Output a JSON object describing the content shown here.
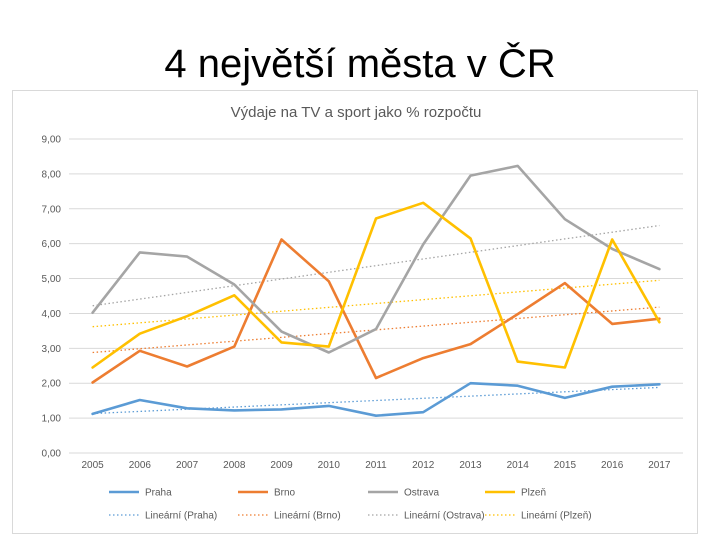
{
  "slide": {
    "title": "4 největší města v ČR"
  },
  "chart_data": {
    "type": "line",
    "title": "Výdaje na TV a sport jako % rozpočtu",
    "xlabel": "",
    "ylabel": "",
    "x": [
      "2005",
      "2006",
      "2007",
      "2008",
      "2009",
      "2010",
      "2011",
      "2012",
      "2013",
      "2014",
      "2015",
      "2016",
      "2017"
    ],
    "ylim": [
      0,
      9
    ],
    "yticks": [
      "0,00",
      "1,00",
      "2,00",
      "3,00",
      "4,00",
      "5,00",
      "6,00",
      "7,00",
      "8,00",
      "9,00"
    ],
    "grid": true,
    "legend": "bottom",
    "series": [
      {
        "name": "Praha",
        "color": "#5b9bd5",
        "values": [
          1.12,
          1.52,
          1.28,
          1.22,
          1.25,
          1.35,
          1.07,
          1.17,
          2.0,
          1.93,
          1.58,
          1.9,
          1.97
        ]
      },
      {
        "name": "Brno",
        "color": "#ed7d31",
        "values": [
          2.02,
          2.93,
          2.48,
          3.05,
          6.12,
          4.92,
          2.15,
          2.72,
          3.12,
          3.98,
          4.87,
          3.7,
          3.85
        ]
      },
      {
        "name": "Ostrava",
        "color": "#a5a5a5",
        "values": [
          4.02,
          5.75,
          5.63,
          4.83,
          3.48,
          2.88,
          3.55,
          5.98,
          7.95,
          8.23,
          6.7,
          5.85,
          5.27
        ]
      },
      {
        "name": "Plzeň",
        "color": "#ffc000",
        "values": [
          2.45,
          3.42,
          3.92,
          4.52,
          3.17,
          3.05,
          6.72,
          7.17,
          6.15,
          2.62,
          2.45,
          6.12,
          3.75
        ]
      }
    ],
    "trendlines": [
      {
        "name": "Lineární (Praha)",
        "color": "#5b9bd5",
        "start": 1.13,
        "end": 1.88
      },
      {
        "name": "Lineární (Brno)",
        "color": "#ed7d31",
        "start": 2.88,
        "end": 4.18
      },
      {
        "name": "Lineární (Ostrava)",
        "color": "#a5a5a5",
        "start": 4.22,
        "end": 6.52
      },
      {
        "name": "Lineární (Plzeň)",
        "color": "#ffc000",
        "start": 3.62,
        "end": 4.95
      }
    ]
  }
}
